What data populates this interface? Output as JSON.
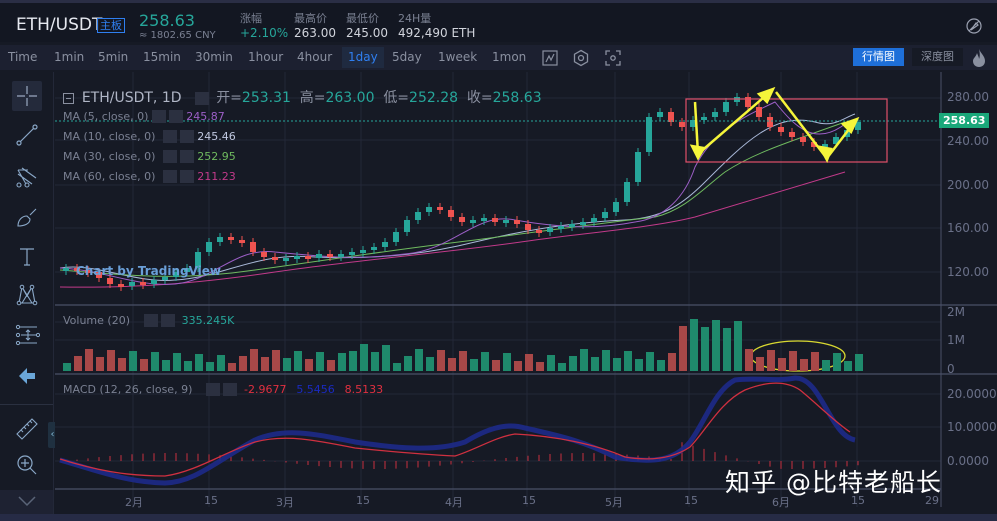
{
  "header": {
    "pair": "ETH/USDT",
    "board_badge": "主板",
    "last_price": "258.63",
    "cny_price": "≈ 1802.65 CNY",
    "stats": [
      {
        "label": "涨幅",
        "value": "+2.10%",
        "up": true
      },
      {
        "label": "最高价",
        "value": "263.00"
      },
      {
        "label": "最低价",
        "value": "245.00"
      },
      {
        "label": "24H量",
        "value": "492,490 ETH"
      }
    ]
  },
  "timeframes": [
    "Time",
    "1min",
    "5min",
    "15min",
    "30min",
    "1hour",
    "4hour",
    "1day",
    "5day",
    "1week",
    "1mon"
  ],
  "active_timeframe": "1day",
  "view_buttons": {
    "chart": "行情图",
    "depth": "深度图"
  },
  "chart": {
    "title": "ETH/USDT, 1D",
    "ohlc": {
      "open_label": "开=",
      "open": "253.31",
      "high_label": "高=",
      "high": "263.00",
      "low_label": "低=",
      "low": "252.28",
      "close_label": "收=",
      "close": "258.63"
    },
    "ma": [
      {
        "label": "MA (5, close, 0)",
        "value": "245.87",
        "color": "#9c5fc7"
      },
      {
        "label": "MA (10, close, 0)",
        "value": "245.46",
        "color": "#a9b8d8"
      },
      {
        "label": "MA (30, close, 0)",
        "value": "252.95",
        "color": "#6fba5f"
      },
      {
        "label": "MA (60, close, 0)",
        "value": "211.23",
        "color": "#c23a8a"
      }
    ],
    "price_axis": [
      "280.00",
      "240.00",
      "200.00",
      "160.00",
      "120.00"
    ],
    "current_price_tag": "258.63",
    "volume": {
      "label": "Volume (20)",
      "value": "335.245K",
      "axis": [
        "2M",
        "1M",
        "0"
      ]
    },
    "macd": {
      "label": "MACD (12, 26, close, 9)",
      "values": [
        "-2.9677",
        "5.5456",
        "8.5133"
      ],
      "axis": [
        "20.0000",
        "10.0000",
        "0.0000"
      ]
    },
    "time_axis": [
      "2月",
      "15",
      "3月",
      "15",
      "4月",
      "15",
      "5月",
      "15",
      "6月",
      "15",
      "29"
    ],
    "tv_watermark": "Chart by TradingView",
    "colors": {
      "up": "#26a69a",
      "down": "#ef5350",
      "annotation": "#f5f53a",
      "box": "#e0506a"
    }
  },
  "watermark": "知乎 @比特老船长"
}
